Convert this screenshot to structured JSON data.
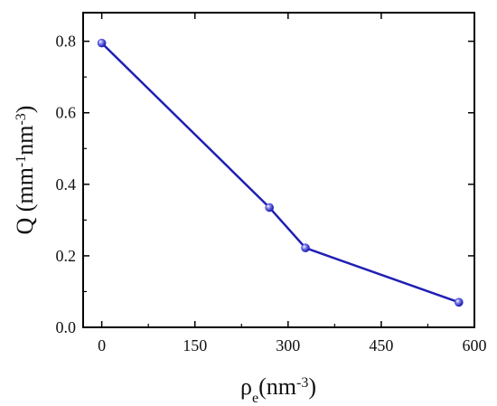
{
  "chart_data": {
    "type": "line",
    "title": "",
    "x": [
      0,
      270,
      328,
      575
    ],
    "series": [
      {
        "values": [
          0.795,
          0.335,
          0.222,
          0.07
        ]
      }
    ],
    "xlabel": {
      "main": "ρ",
      "sub": "e",
      "unit": "(nm",
      "sup": "-3",
      "close": ")"
    },
    "ylabel": {
      "main": "Q (mm",
      "sup1": "-1",
      "mid": "nm",
      "sup2": "-3",
      "close": ")"
    },
    "xlim": [
      -30,
      600
    ],
    "ylim": [
      0.0,
      0.88
    ],
    "xticks": [
      0,
      150,
      300,
      450,
      600
    ],
    "xtick_labels": [
      "0",
      "150",
      "300",
      "450",
      "600"
    ],
    "yticks": [
      0.0,
      0.2,
      0.4,
      0.6,
      0.8
    ],
    "ytick_labels": [
      "0.0",
      "0.2",
      "0.4",
      "0.6",
      "0.8"
    ],
    "grid": false,
    "line_color": "#1f1fb4",
    "marker_color": "#2b2bd8"
  }
}
